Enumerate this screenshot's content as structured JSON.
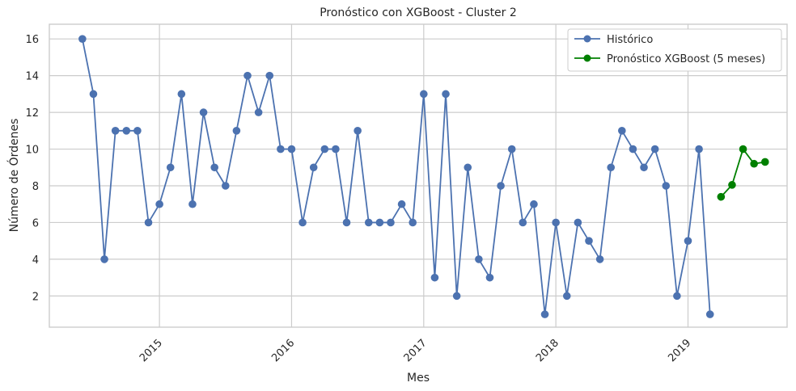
{
  "chart_data": {
    "type": "line",
    "title": "Pronóstico con XGBoost - Cluster 2",
    "xlabel": "Mes",
    "ylabel": "Número de Órdenes",
    "grid": true,
    "legend_position": "top-right",
    "x_axis": "date-monthly",
    "xlim": [
      "2014-03",
      "2019-10"
    ],
    "ylim": [
      0.3,
      16.8
    ],
    "xticks": [
      {
        "label": "2015",
        "date": "2015-01"
      },
      {
        "label": "2016",
        "date": "2016-01"
      },
      {
        "label": "2017",
        "date": "2017-01"
      },
      {
        "label": "2018",
        "date": "2018-01"
      },
      {
        "label": "2019",
        "date": "2019-01"
      }
    ],
    "yticks": [
      2,
      4,
      6,
      8,
      10,
      12,
      14,
      16
    ],
    "series": [
      {
        "name": "Histórico",
        "color": "#4c72b0",
        "x": [
          "2014-06",
          "2014-07",
          "2014-08",
          "2014-09",
          "2014-10",
          "2014-11",
          "2014-12",
          "2015-01",
          "2015-02",
          "2015-03",
          "2015-04",
          "2015-05",
          "2015-06",
          "2015-07",
          "2015-08",
          "2015-09",
          "2015-10",
          "2015-11",
          "2015-12",
          "2016-01",
          "2016-02",
          "2016-03",
          "2016-04",
          "2016-05",
          "2016-06",
          "2016-07",
          "2016-08",
          "2016-09",
          "2016-10",
          "2016-11",
          "2016-12",
          "2017-01",
          "2017-02",
          "2017-03",
          "2017-04",
          "2017-05",
          "2017-06",
          "2017-07",
          "2017-08",
          "2017-09",
          "2017-10",
          "2017-11",
          "2017-12",
          "2018-01",
          "2018-02",
          "2018-03",
          "2018-04",
          "2018-05",
          "2018-06",
          "2018-07",
          "2018-08",
          "2018-09",
          "2018-10",
          "2018-11",
          "2018-12",
          "2019-01",
          "2019-02",
          "2019-03"
        ],
        "values": [
          16,
          13,
          4,
          11,
          11,
          11,
          6,
          7,
          9,
          13,
          7,
          12,
          9,
          8,
          11,
          14,
          12,
          14,
          10,
          10,
          6,
          9,
          10,
          10,
          6,
          11,
          6,
          6,
          6,
          7,
          6,
          13,
          3,
          13,
          2,
          9,
          4,
          3,
          8,
          10,
          6,
          7,
          1,
          6,
          2,
          6,
          5,
          4,
          9,
          11,
          10,
          9,
          10,
          8,
          2,
          5,
          10,
          1
        ]
      },
      {
        "name": "Pronóstico XGBoost (5 meses)",
        "color": "#008000",
        "x": [
          "2019-04",
          "2019-05",
          "2019-06",
          "2019-07",
          "2019-08"
        ],
        "values": [
          7.4,
          8.05,
          10.0,
          9.2,
          9.3
        ]
      }
    ]
  }
}
